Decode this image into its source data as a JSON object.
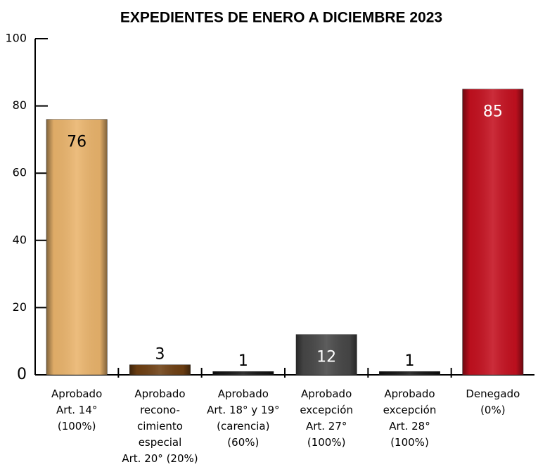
{
  "chart_data": {
    "type": "bar",
    "title": "EXPEDIENTES DE ENERO A DICIEMBRE 2023",
    "categories": [
      [
        "Aprobado",
        "Art. 14°",
        "(100%)"
      ],
      [
        "Aprobado",
        "recono-",
        "cimiento",
        "especial",
        "Art. 20° (20%)"
      ],
      [
        "Aprobado",
        "Art. 18° y 19°",
        "(carencia)",
        "(60%)"
      ],
      [
        "Aprobado",
        "excepción",
        "Art. 27°",
        "(100%)"
      ],
      [
        "Aprobado",
        "excepción",
        "Art. 28°",
        "(100%)"
      ],
      [
        "Denegado",
        "(0%)"
      ]
    ],
    "values": [
      76,
      3,
      1,
      12,
      1,
      85
    ],
    "colors": [
      "#eab46c",
      "#6e3f12",
      "#151515",
      "#474747",
      "#151515",
      "#c4101f"
    ],
    "label_colors": [
      "#000000",
      "#000000",
      "#000000",
      "#ffffff",
      "#000000",
      "#ffffff"
    ],
    "ylim": [
      0,
      100
    ],
    "yticks": [
      0,
      20,
      40,
      60,
      80,
      100
    ],
    "grid": false
  }
}
